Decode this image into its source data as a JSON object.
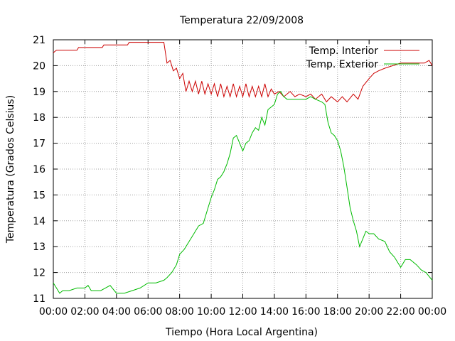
{
  "chart_data": {
    "type": "line",
    "title": "Temperatura 22/09/2008",
    "xlabel": "Tiempo (Hora Local Argentina)",
    "ylabel": "Temperatura (Grados Celsius)",
    "xlim": [
      0,
      24
    ],
    "ylim": [
      11,
      21
    ],
    "x_ticks": [
      "00:00",
      "02:00",
      "04:00",
      "06:00",
      "08:00",
      "10:00",
      "12:00",
      "14:00",
      "16:00",
      "18:00",
      "20:00",
      "22:00",
      "00:00"
    ],
    "y_ticks": [
      "11",
      "12",
      "13",
      "14",
      "15",
      "16",
      "17",
      "18",
      "19",
      "20",
      "21"
    ],
    "grid": true,
    "legend_position": "top-right",
    "series": [
      {
        "name": "Temp. Interior",
        "color": "#cc0000",
        "x": [
          0,
          0.2,
          1.5,
          1.6,
          3.1,
          3.2,
          4.7,
          4.8,
          6.2,
          6.3,
          7.0,
          7.2,
          7.4,
          7.6,
          7.8,
          8.0,
          8.2,
          8.4,
          8.6,
          8.8,
          9.0,
          9.2,
          9.4,
          9.6,
          9.8,
          10.0,
          10.2,
          10.4,
          10.6,
          10.8,
          11.0,
          11.2,
          11.4,
          11.6,
          11.8,
          12.0,
          12.2,
          12.4,
          12.6,
          12.8,
          13.0,
          13.2,
          13.4,
          13.6,
          13.8,
          14.0,
          14.3,
          14.6,
          15.0,
          15.3,
          15.6,
          16.0,
          16.3,
          16.6,
          17.0,
          17.3,
          17.6,
          18.0,
          18.3,
          18.6,
          19.0,
          19.3,
          19.6,
          20.0,
          20.3,
          20.6,
          21.0,
          21.5,
          22.0,
          22.5,
          23.0,
          23.5,
          23.8,
          24.0
        ],
        "y": [
          20.5,
          20.6,
          20.6,
          20.7,
          20.7,
          20.8,
          20.8,
          20.9,
          20.9,
          20.9,
          20.9,
          20.1,
          20.2,
          19.8,
          19.9,
          19.5,
          19.7,
          19.0,
          19.4,
          19.0,
          19.4,
          18.9,
          19.4,
          18.9,
          19.3,
          18.9,
          19.3,
          18.8,
          19.3,
          18.8,
          19.2,
          18.8,
          19.3,
          18.8,
          19.2,
          18.8,
          19.3,
          18.8,
          19.2,
          18.8,
          19.2,
          18.8,
          19.3,
          18.8,
          19.1,
          18.9,
          19.0,
          18.8,
          19.0,
          18.8,
          18.9,
          18.8,
          18.9,
          18.7,
          18.9,
          18.6,
          18.8,
          18.6,
          18.8,
          18.6,
          18.9,
          18.7,
          19.2,
          19.5,
          19.7,
          19.8,
          19.9,
          20.0,
          20.1,
          20.1,
          20.1,
          20.1,
          20.2,
          20.0
        ]
      },
      {
        "name": "Temp. Exterior",
        "color": "#00bb00",
        "x": [
          0,
          0.2,
          0.4,
          0.6,
          1.0,
          1.5,
          2.0,
          2.2,
          2.4,
          2.6,
          3.0,
          3.3,
          3.6,
          4.0,
          4.5,
          5.0,
          5.5,
          6.0,
          6.5,
          7.0,
          7.2,
          7.5,
          7.8,
          8.0,
          8.3,
          8.6,
          8.9,
          9.2,
          9.5,
          9.8,
          10.0,
          10.2,
          10.4,
          10.6,
          10.8,
          11.0,
          11.2,
          11.4,
          11.6,
          11.8,
          12.0,
          12.2,
          12.4,
          12.6,
          12.8,
          13.0,
          13.2,
          13.4,
          13.6,
          13.8,
          14.0,
          14.2,
          14.4,
          14.6,
          14.8,
          15.0,
          15.3,
          15.6,
          16.0,
          16.3,
          16.6,
          17.0,
          17.2,
          17.4,
          17.6,
          17.8,
          18.0,
          18.2,
          18.4,
          18.6,
          18.8,
          19.0,
          19.2,
          19.4,
          19.6,
          19.8,
          20.0,
          20.3,
          20.6,
          21.0,
          21.3,
          21.6,
          22.0,
          22.3,
          22.6,
          23.0,
          23.3,
          23.6,
          24.0
        ],
        "y": [
          11.6,
          11.4,
          11.2,
          11.3,
          11.3,
          11.4,
          11.4,
          11.5,
          11.3,
          11.3,
          11.3,
          11.4,
          11.5,
          11.2,
          11.2,
          11.3,
          11.4,
          11.6,
          11.6,
          11.7,
          11.8,
          12.0,
          12.3,
          12.7,
          12.9,
          13.2,
          13.5,
          13.8,
          13.9,
          14.5,
          14.9,
          15.2,
          15.6,
          15.7,
          15.9,
          16.2,
          16.6,
          17.2,
          17.3,
          17.0,
          16.7,
          17.0,
          17.1,
          17.4,
          17.6,
          17.5,
          18.0,
          17.7,
          18.3,
          18.4,
          18.5,
          18.9,
          19.0,
          18.8,
          18.7,
          18.7,
          18.7,
          18.7,
          18.7,
          18.8,
          18.7,
          18.6,
          18.5,
          17.8,
          17.4,
          17.3,
          17.1,
          16.7,
          16.1,
          15.3,
          14.5,
          14.0,
          13.6,
          13.0,
          13.3,
          13.6,
          13.5,
          13.5,
          13.3,
          13.2,
          12.8,
          12.6,
          12.2,
          12.5,
          12.5,
          12.3,
          12.1,
          12.0,
          11.7
        ]
      }
    ]
  }
}
